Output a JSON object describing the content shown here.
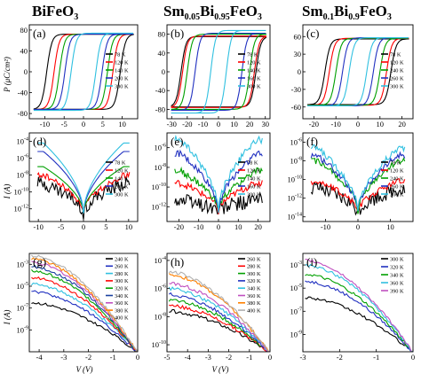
{
  "figure": {
    "columns": [
      {
        "title_main": "BiFeO",
        "title_sub": "3",
        "title_rest": ""
      },
      {
        "title_main": "Sm",
        "title_sub": "0.05",
        "title_rest": "Bi",
        "title_sub2": "0.95",
        "title_end": "FeO",
        "title_sub3": "3"
      },
      {
        "title_main": "Sm",
        "title_sub": "0.1",
        "title_rest": "Bi",
        "title_sub2": "0.9",
        "title_end": "FeO",
        "title_sub3": "3"
      }
    ],
    "row_ylabels": [
      "P (μC/cm²)",
      "I (A)",
      "I (A)"
    ],
    "bottom_xlabel": "V (V)"
  },
  "chart_data": [
    {
      "id": "a",
      "type": "line",
      "letter": "(a)",
      "xlim": [
        -14,
        14
      ],
      "ylim": [
        -90,
        90
      ],
      "xticks": [
        -10,
        -5,
        0,
        5,
        10
      ],
      "yticks": [
        -80,
        -40,
        0,
        40,
        80
      ],
      "series": [
        {
          "name": "78 K",
          "color": "#000000",
          "ps": 72,
          "ec": 9.5
        },
        {
          "name": "120 K",
          "color": "#ff0000",
          "ps": 72,
          "ec": 7.6
        },
        {
          "name": "140 K",
          "color": "#00a000",
          "ps": 72,
          "ec": 6.2
        },
        {
          "name": "200 K",
          "color": "#2030c0",
          "ps": 72,
          "ec": 4.8
        },
        {
          "name": "300 K",
          "color": "#30c0e0",
          "ps": 74,
          "ec": 3.2
        }
      ]
    },
    {
      "id": "b",
      "type": "line",
      "letter": "(b)",
      "xlim": [
        -33,
        33
      ],
      "ylim": [
        -100,
        100
      ],
      "xticks": [
        -30,
        -20,
        -10,
        0,
        10,
        20,
        30
      ],
      "yticks": [
        -80,
        -40,
        0,
        40,
        80
      ],
      "series": [
        {
          "name": "78 K",
          "color": "#000000",
          "ps": 75,
          "ec": 24
        },
        {
          "name": "120 K",
          "color": "#ff0000",
          "ps": 76,
          "ec": 23
        },
        {
          "name": "140 K",
          "color": "#00a000",
          "ps": 80,
          "ec": 20
        },
        {
          "name": "160 K",
          "color": "#2030c0",
          "ps": 82,
          "ec": 15
        },
        {
          "name": "300 K",
          "color": "#30c0e0",
          "ps": 88,
          "ec": 5
        }
      ]
    },
    {
      "id": "c",
      "type": "line",
      "letter": "(c)",
      "xlim": [
        -25,
        25
      ],
      "ylim": [
        -80,
        80
      ],
      "xticks": [
        -20,
        -10,
        0,
        10,
        20
      ],
      "yticks": [
        -60,
        -30,
        0,
        30,
        60
      ],
      "series": [
        {
          "name": "78 K",
          "color": "#000000",
          "ps": 56,
          "ec": 15
        },
        {
          "name": "120 K",
          "color": "#ff0000",
          "ps": 57,
          "ec": 13
        },
        {
          "name": "240 K",
          "color": "#00a000",
          "ps": 57,
          "ec": 10
        },
        {
          "name": "260 K",
          "color": "#2030c0",
          "ps": 58,
          "ec": 7
        },
        {
          "name": "300 K",
          "color": "#30c0e0",
          "ps": 58,
          "ec": 4
        }
      ]
    },
    {
      "id": "d",
      "type": "line",
      "letter": "(d)",
      "log_y": true,
      "xlim": [
        -12,
        12
      ],
      "ylim": [
        -13.5,
        -3
      ],
      "xticks": [
        -10,
        -5,
        0,
        5,
        10
      ],
      "yticks": [
        -4,
        -6,
        -8,
        -10,
        -12
      ],
      "ytick_labels": [
        "10",
        "10",
        "10",
        "10",
        "10"
      ],
      "ytick_exp": [
        "-4",
        "-6",
        "-8",
        "-10",
        "-12"
      ],
      "series": [
        {
          "name": "78 K",
          "color": "#000000",
          "hi": -9.0
        },
        {
          "name": "120 K",
          "color": "#ff0000",
          "hi": -8.0
        },
        {
          "name": "140 K",
          "color": "#00a000",
          "hi": -7.0
        },
        {
          "name": "200 K",
          "color": "#2030c0",
          "hi": -5.2
        },
        {
          "name": "300 K",
          "color": "#30c0e0",
          "hi": -4.2
        }
      ]
    },
    {
      "id": "e",
      "type": "line",
      "letter": "(e)",
      "log_y": true,
      "xlim": [
        -26,
        26
      ],
      "ylim": [
        -13.5,
        -4.5
      ],
      "xticks": [
        -20,
        -10,
        0,
        10,
        20
      ],
      "yticks": [
        -6,
        -8,
        -10,
        -12
      ],
      "ytick_labels": [
        "10",
        "10",
        "10",
        "10"
      ],
      "ytick_exp": [
        "-6",
        "-8",
        "-10",
        "-12"
      ],
      "series": [
        {
          "name": "78 K",
          "color": "#000000",
          "hi": -11.3
        },
        {
          "name": "120 K",
          "color": "#ff0000",
          "hi": -9.6
        },
        {
          "name": "140 K",
          "color": "#00a000",
          "hi": -8.4
        },
        {
          "name": "160 K",
          "color": "#2030c0",
          "hi": -6.6
        },
        {
          "name": "300 K",
          "color": "#30c0e0",
          "hi": -5.2
        }
      ]
    },
    {
      "id": "f",
      "type": "line",
      "letter": "(f)",
      "log_y": true,
      "xlim": [
        -17,
        17
      ],
      "ylim": [
        -14.5,
        -5
      ],
      "xticks": [
        -10,
        0,
        10
      ],
      "yticks": [
        -6,
        -8,
        -10,
        -12,
        -14
      ],
      "ytick_labels": [
        "10",
        "10",
        "10",
        "10",
        "10"
      ],
      "ytick_exp": [
        "-6",
        "-8",
        "-10",
        "-12",
        "-14"
      ],
      "series": [
        {
          "name": "78 K",
          "color": "#000000",
          "hi": -11.0
        },
        {
          "name": "120 K",
          "color": "#ff0000",
          "hi": -10.2
        },
        {
          "name": "240 K",
          "color": "#00a000",
          "hi": -8.0
        },
        {
          "name": "260 K",
          "color": "#2030c0",
          "hi": -7.4
        },
        {
          "name": "300 K",
          "color": "#30c0e0",
          "hi": -6.6
        }
      ]
    },
    {
      "id": "g",
      "type": "line",
      "letter": "(g)",
      "log_y": true,
      "xlim": [
        -4.4,
        0
      ],
      "ylim": [
        -11,
        -2
      ],
      "xticks": [
        -4,
        -3,
        -2,
        -1,
        0
      ],
      "yticks": [
        -3,
        -5,
        -7,
        -9
      ],
      "ytick_labels": [
        "10",
        "10",
        "10",
        "10"
      ],
      "ytick_exp": [
        "-3",
        "-5",
        "-7",
        "-9"
      ],
      "series": [
        {
          "name": "240 K",
          "color": "#000000",
          "start": -6.5
        },
        {
          "name": "260 K",
          "color": "#2030c0",
          "start": -5.5
        },
        {
          "name": "280 K",
          "color": "#30c0e0",
          "start": -4.8
        },
        {
          "name": "300 K",
          "color": "#ff0000",
          "start": -4.2
        },
        {
          "name": "320 K",
          "color": "#00a000",
          "start": -3.6
        },
        {
          "name": "340 K",
          "color": "#1a40a0",
          "start": -3.2
        },
        {
          "name": "360 K",
          "color": "#c050c0",
          "start": -2.8
        },
        {
          "name": "380 K",
          "color": "#ff8000",
          "start": -2.5
        },
        {
          "name": "400 K",
          "color": "#b0b0b0",
          "start": -2.2
        }
      ]
    },
    {
      "id": "h",
      "type": "line",
      "letter": "(h)",
      "log_y": true,
      "xlim": [
        -5,
        0
      ],
      "ylim": [
        -10.5,
        -3.5
      ],
      "xticks": [
        -5,
        -4,
        -3,
        -2,
        -1,
        0
      ],
      "yticks": [
        -4,
        -6,
        -8,
        -10
      ],
      "ytick_labels": [
        "10",
        "10",
        "10",
        "10"
      ],
      "ytick_exp": [
        "-4",
        "-6",
        "-8",
        "-10"
      ],
      "series": [
        {
          "name": "260 K",
          "color": "#000000",
          "start": -7.6
        },
        {
          "name": "280 K",
          "color": "#ff0000",
          "start": -7.2
        },
        {
          "name": "300 K",
          "color": "#00a000",
          "start": -6.8
        },
        {
          "name": "320 K",
          "color": "#2030c0",
          "start": -6.4
        },
        {
          "name": "340 K",
          "color": "#30c0e0",
          "start": -6.0
        },
        {
          "name": "360 K",
          "color": "#c050c0",
          "start": -5.6
        },
        {
          "name": "380 K",
          "color": "#ff8000",
          "start": -5.0
        },
        {
          "name": "400 K",
          "color": "#b0b0b0",
          "start": -4.8
        }
      ]
    },
    {
      "id": "i",
      "type": "line",
      "letter": "(i)",
      "log_y": true,
      "xlim": [
        -3,
        0
      ],
      "ylim": [
        -10.5,
        -2
      ],
      "xticks": [
        -3,
        -2,
        -1,
        0
      ],
      "yticks": [
        -3,
        -5,
        -7,
        -9
      ],
      "ytick_labels": [
        "10",
        "10",
        "10",
        "10"
      ],
      "ytick_exp": [
        "-3",
        "-5",
        "-7",
        "-9"
      ],
      "series": [
        {
          "name": "300 K",
          "color": "#000000",
          "start": -5.8
        },
        {
          "name": "320 K",
          "color": "#2030c0",
          "start": -4.4
        },
        {
          "name": "340 K",
          "color": "#00a000",
          "start": -3.8
        },
        {
          "name": "360 K",
          "color": "#30c0e0",
          "start": -3.0
        },
        {
          "name": "390 K",
          "color": "#c050c0",
          "start": -2.6
        }
      ]
    }
  ]
}
